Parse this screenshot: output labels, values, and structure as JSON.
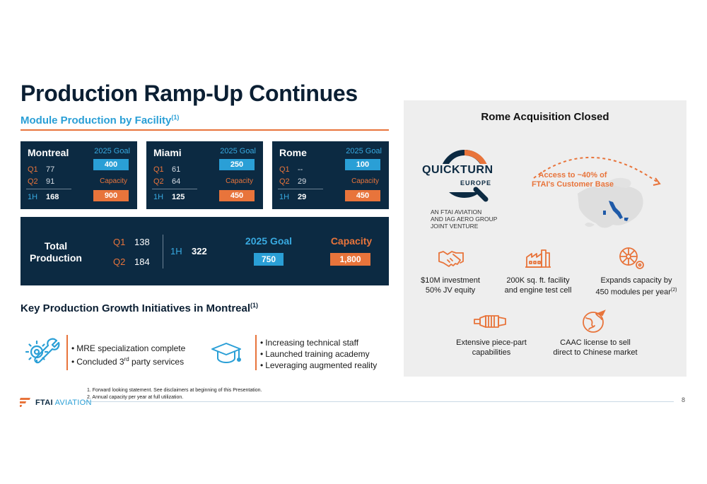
{
  "page": {
    "title": "Production Ramp-Up Continues",
    "subtitle": "Module Production by Facility",
    "subtitle_sup": "(1)",
    "page_number": "8"
  },
  "colors": {
    "navy": "#0c2a42",
    "blue": "#2a9fd6",
    "orange": "#e8743b",
    "panel": "#eeeeee"
  },
  "facilities": [
    {
      "name": "Montreal",
      "goal_label": "2025 Goal",
      "q1_label": "Q1",
      "q1": "77",
      "q2_label": "Q2",
      "q2": "91",
      "h1_label": "1H",
      "h1": "168",
      "goal": "400",
      "capacity_label": "Capacity",
      "capacity": "900"
    },
    {
      "name": "Miami",
      "goal_label": "2025 Goal",
      "q1_label": "Q1",
      "q1": "61",
      "q2_label": "Q2",
      "q2": "64",
      "h1_label": "1H",
      "h1": "125",
      "goal": "250",
      "capacity_label": "Capacity",
      "capacity": "450"
    },
    {
      "name": "Rome",
      "goal_label": "2025 Goal",
      "q1_label": "Q1",
      "q1": "--",
      "q2_label": "Q2",
      "q2": "29",
      "h1_label": "1H",
      "h1": "29",
      "goal": "100",
      "capacity_label": "Capacity",
      "capacity": "450"
    }
  ],
  "total": {
    "label_line1": "Total",
    "label_line2": "Production",
    "q1_label": "Q1",
    "q1": "138",
    "q2_label": "Q2",
    "q2": "184",
    "h1_label": "1H",
    "h1": "322",
    "goal_label": "2025 Goal",
    "goal": "750",
    "capacity_label": "Capacity",
    "capacity": "1,800"
  },
  "initiatives": {
    "title": "Key Production Growth Initiatives in Montreal",
    "title_sup": "(1)",
    "group1": {
      "icon": "wrench-gear-icon",
      "item1": "MRE specialization complete",
      "item2_pre": "Concluded 3",
      "item2_sup": "rd",
      "item2_post": " party services"
    },
    "group2": {
      "icon": "graduation-cap-icon",
      "items": [
        "Increasing technical staff",
        "Launched training academy",
        "Leveraging augmented reality"
      ]
    }
  },
  "rome_panel": {
    "title": "Rome Acquisition Closed",
    "logo_word": "QUICKTURN",
    "logo_sub": "EUROPE",
    "jv_line1": "AN FTAI AVIATION",
    "jv_line2": "AND IAG AERO GROUP",
    "jv_line3": "JOINT VENTURE",
    "access_line1": "Access to ~40% of",
    "access_line2": "FTAI's Customer Base",
    "features": [
      {
        "icon": "handshake-icon",
        "line1": "$10M investment",
        "line2": "50% JV equity"
      },
      {
        "icon": "factory-icon",
        "line1": "200K sq. ft. facility",
        "line2": "and engine test cell"
      },
      {
        "icon": "engine-gear-icon",
        "line1": "Expands capacity by",
        "line2": "450 modules per year",
        "line2_sup": "(2)"
      },
      {
        "icon": "engine-part-icon",
        "line1": "Extensive piece-part",
        "line2": "capabilities"
      },
      {
        "icon": "globe-plane-icon",
        "line1": "CAAC license to sell",
        "line2": "direct to Chinese market"
      }
    ]
  },
  "footnotes": [
    "1.  Forward looking statement. See disclaimers at beginning of this Presentation.",
    "2.  Annual capacity per year at full utilization."
  ],
  "logo": {
    "brand_bold": "FTAI",
    "brand_rest": " AVIATION"
  }
}
